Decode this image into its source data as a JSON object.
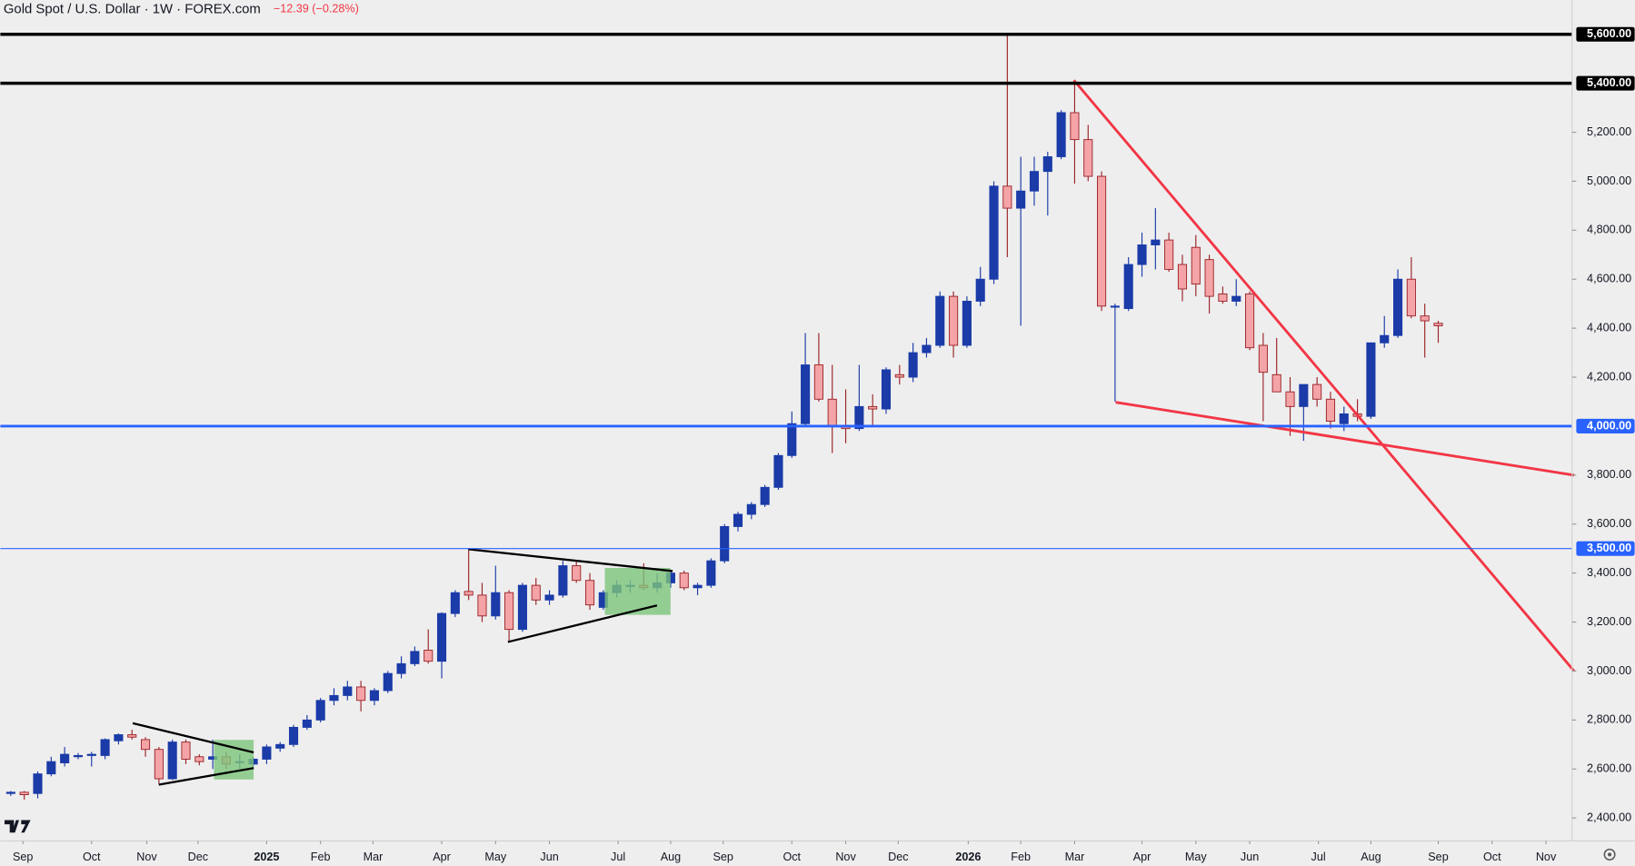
{
  "chart_data": {
    "type": "candlestick",
    "title": "Gold Spot / U.S. Dollar · 1W · FOREX.com",
    "subtitle": "−12.39 (−0.28%)",
    "up_color": "#1a3ba8",
    "down_color": "#f4a4a6",
    "down_border": "#9b2228",
    "x": [
      0,
      1,
      2,
      3,
      4,
      5,
      6,
      7,
      8,
      9,
      10,
      11,
      12,
      13,
      14,
      15,
      16,
      17,
      18,
      19,
      20,
      21,
      22,
      23,
      24,
      25,
      26,
      27,
      28,
      29,
      30,
      31,
      32,
      33,
      34,
      35,
      36,
      37,
      38,
      39,
      40,
      41,
      42,
      43,
      44,
      45,
      46,
      47,
      48,
      49,
      50,
      51,
      52,
      53,
      54,
      55,
      56,
      57,
      58,
      59,
      60,
      61,
      62,
      63,
      64,
      65,
      66,
      67,
      68,
      69,
      70,
      71,
      72,
      73,
      74,
      75,
      76,
      77,
      78,
      79,
      80,
      81,
      82,
      83,
      84,
      85,
      86,
      87,
      88,
      89,
      90,
      91,
      92,
      93,
      94,
      95,
      96,
      97,
      98,
      99,
      100,
      101,
      102,
      103,
      104,
      105,
      106
    ],
    "open": [
      2500,
      2505,
      2500,
      2580,
      2625,
      2650,
      2655,
      2655,
      2715,
      2740,
      2720,
      2680,
      2560,
      2710,
      2650,
      2640,
      2650,
      2630,
      2620,
      2640,
      2685,
      2700,
      2770,
      2800,
      2880,
      2900,
      2935,
      2880,
      2920,
      2990,
      3030,
      3085,
      3040,
      3235,
      3325,
      3310,
      3225,
      3320,
      3170,
      3350,
      3290,
      3310,
      3430,
      3370,
      3260,
      3320,
      3345,
      3350,
      3340,
      3360,
      3400,
      3340,
      3350,
      3450,
      3590,
      3640,
      3680,
      3750,
      3880,
      4010,
      4250,
      4110,
      4000,
      3990,
      4080,
      4070,
      4210,
      4200,
      4300,
      4330,
      4530,
      4330,
      4510,
      4600,
      4980,
      4890,
      4960,
      5040,
      5100,
      5280,
      5170,
      5020,
      4490,
      4480,
      4660,
      4740,
      4760,
      4660,
      4730,
      4680,
      4540,
      4510,
      4540,
      4330,
      4210,
      4140,
      4080,
      4170,
      4110,
      4010,
      4050,
      4040,
      4340,
      4370,
      4600,
      4450,
      4420
    ],
    "high": [
      2510,
      2510,
      2590,
      2650,
      2690,
      2665,
      2670,
      2725,
      2745,
      2760,
      2730,
      2690,
      2720,
      2720,
      2660,
      2720,
      2670,
      2660,
      2650,
      2700,
      2710,
      2780,
      2820,
      2890,
      2930,
      2960,
      2960,
      2930,
      3000,
      3060,
      3100,
      3170,
      3240,
      3330,
      3500,
      3360,
      3430,
      3330,
      3360,
      3380,
      3330,
      3450,
      3450,
      3400,
      3330,
      3370,
      3370,
      3440,
      3400,
      3410,
      3410,
      3360,
      3460,
      3600,
      3650,
      3690,
      3760,
      3890,
      4060,
      4380,
      4380,
      4250,
      4150,
      4250,
      4130,
      4240,
      4250,
      4340,
      4360,
      4550,
      4550,
      4530,
      4650,
      5000,
      5600,
      5100,
      5100,
      5120,
      5290,
      5400,
      5230,
      5040,
      4500,
      4690,
      4790,
      4890,
      4790,
      4700,
      4780,
      4700,
      4570,
      4600,
      4550,
      4380,
      4360,
      4200,
      4170,
      4200,
      4140,
      4080,
      4110,
      4340,
      4450,
      4640,
      4690,
      4500,
      4430
    ],
    "low": [
      2490,
      2475,
      2480,
      2570,
      2610,
      2640,
      2610,
      2640,
      2700,
      2720,
      2650,
      2540,
      2555,
      2620,
      2615,
      2600,
      2600,
      2600,
      2600,
      2620,
      2670,
      2690,
      2760,
      2790,
      2860,
      2880,
      2835,
      2860,
      2910,
      2970,
      3020,
      3030,
      2970,
      3220,
      3290,
      3200,
      3210,
      3120,
      3160,
      3270,
      3270,
      3300,
      3360,
      3250,
      3250,
      3300,
      3320,
      3330,
      3320,
      3340,
      3330,
      3310,
      3340,
      3440,
      3570,
      3620,
      3670,
      3740,
      3870,
      4000,
      4100,
      3890,
      3930,
      3980,
      4000,
      4050,
      4170,
      4180,
      4280,
      4320,
      4280,
      4320,
      4490,
      4580,
      4690,
      4410,
      4900,
      4860,
      5090,
      4990,
      5000,
      4470,
      4100,
      4470,
      4610,
      4640,
      4630,
      4510,
      4530,
      4460,
      4500,
      4490,
      4310,
      4020,
      4140,
      3960,
      3940,
      4080,
      3990,
      3980,
      4020,
      4030,
      4320,
      4360,
      4440,
      4280,
      4340
    ],
    "close": [
      2505,
      2495,
      2580,
      2630,
      2660,
      2655,
      2660,
      2720,
      2740,
      2730,
      2680,
      2560,
      2710,
      2640,
      2630,
      2650,
      2620,
      2630,
      2640,
      2690,
      2700,
      2770,
      2800,
      2880,
      2900,
      2935,
      2880,
      2920,
      2990,
      3030,
      3080,
      3040,
      3235,
      3320,
      3310,
      3225,
      3320,
      3170,
      3350,
      3290,
      3310,
      3430,
      3370,
      3270,
      3320,
      3350,
      3350,
      3340,
      3360,
      3400,
      3340,
      3350,
      3450,
      3590,
      3640,
      3680,
      3750,
      3880,
      4010,
      4250,
      4110,
      4000,
      3990,
      4080,
      4070,
      4230,
      4200,
      4300,
      4330,
      4530,
      4330,
      4510,
      4600,
      4980,
      4890,
      4960,
      5040,
      5100,
      5280,
      5170,
      5020,
      4490,
      4490,
      4660,
      4740,
      4760,
      4640,
      4560,
      4580,
      4530,
      4510,
      4530,
      4320,
      4220,
      4140,
      4080,
      4170,
      4110,
      4020,
      4050,
      4040,
      4340,
      4370,
      4600,
      4450,
      4430,
      4410
    ],
    "xlim": [
      -0.774,
      115.94
    ],
    "xticks": [
      {
        "value": 0.9,
        "label": "Sep"
      },
      {
        "value": 6.0,
        "label": "Oct"
      },
      {
        "value": 10.1,
        "label": "Nov"
      },
      {
        "value": 13.9,
        "label": "Dec"
      },
      {
        "value": 19.0,
        "label": "2025"
      },
      {
        "value": 23.0,
        "label": "Feb"
      },
      {
        "value": 26.9,
        "label": "Mar"
      },
      {
        "value": 32.0,
        "label": "Apr"
      },
      {
        "value": 36.0,
        "label": "May"
      },
      {
        "value": 40.0,
        "label": "Jun"
      },
      {
        "value": 45.1,
        "label": "Jul"
      },
      {
        "value": 49.0,
        "label": "Aug"
      },
      {
        "value": 52.9,
        "label": "Sep"
      },
      {
        "value": 58.0,
        "label": "Oct"
      },
      {
        "value": 62.0,
        "label": "Nov"
      },
      {
        "value": 65.9,
        "label": "Dec"
      },
      {
        "value": 71.1,
        "label": "2026"
      },
      {
        "value": 75.0,
        "label": "Feb"
      },
      {
        "value": 79.0,
        "label": "Mar"
      },
      {
        "value": 84.0,
        "label": "Apr"
      },
      {
        "value": 88.0,
        "label": "May"
      },
      {
        "value": 92.0,
        "label": "Jun"
      },
      {
        "value": 97.1,
        "label": "Jul"
      },
      {
        "value": 101.0,
        "label": "Aug"
      },
      {
        "value": 106.0,
        "label": "Sep"
      },
      {
        "value": 110.0,
        "label": "Oct"
      },
      {
        "value": 114.0,
        "label": "Nov"
      }
    ],
    "ylim": [
      2306,
      5740
    ],
    "yticks": [
      {
        "value": 2400,
        "label": "2,400.00"
      },
      {
        "value": 2600,
        "label": "2,600.00"
      },
      {
        "value": 2800,
        "label": "2,800.00"
      },
      {
        "value": 3000,
        "label": "3,000.00"
      },
      {
        "value": 3200,
        "label": "3,200.00"
      },
      {
        "value": 3400,
        "label": "3,400.00"
      },
      {
        "value": 3600,
        "label": "3,600.00"
      },
      {
        "value": 3800,
        "label": "3,800.00"
      },
      {
        "value": 4200,
        "label": "4,200.00"
      },
      {
        "value": 4400,
        "label": "4,400.00"
      },
      {
        "value": 4600,
        "label": "4,600.00"
      },
      {
        "value": 4800,
        "label": "4,800.00"
      },
      {
        "value": 5000,
        "label": "5,000.00"
      },
      {
        "value": 5200,
        "label": "5,200.00"
      }
    ],
    "hlines": [
      {
        "value": 5600,
        "label": "5,600.00",
        "color": "#000000"
      },
      {
        "value": 5400,
        "label": "5,400.00",
        "color": "#000000"
      },
      {
        "value": 4000,
        "label": "4,000.00",
        "color": "#2962ff"
      },
      {
        "value": 3500,
        "label": "3,500.00",
        "color": "#2962ff"
      }
    ]
  }
}
